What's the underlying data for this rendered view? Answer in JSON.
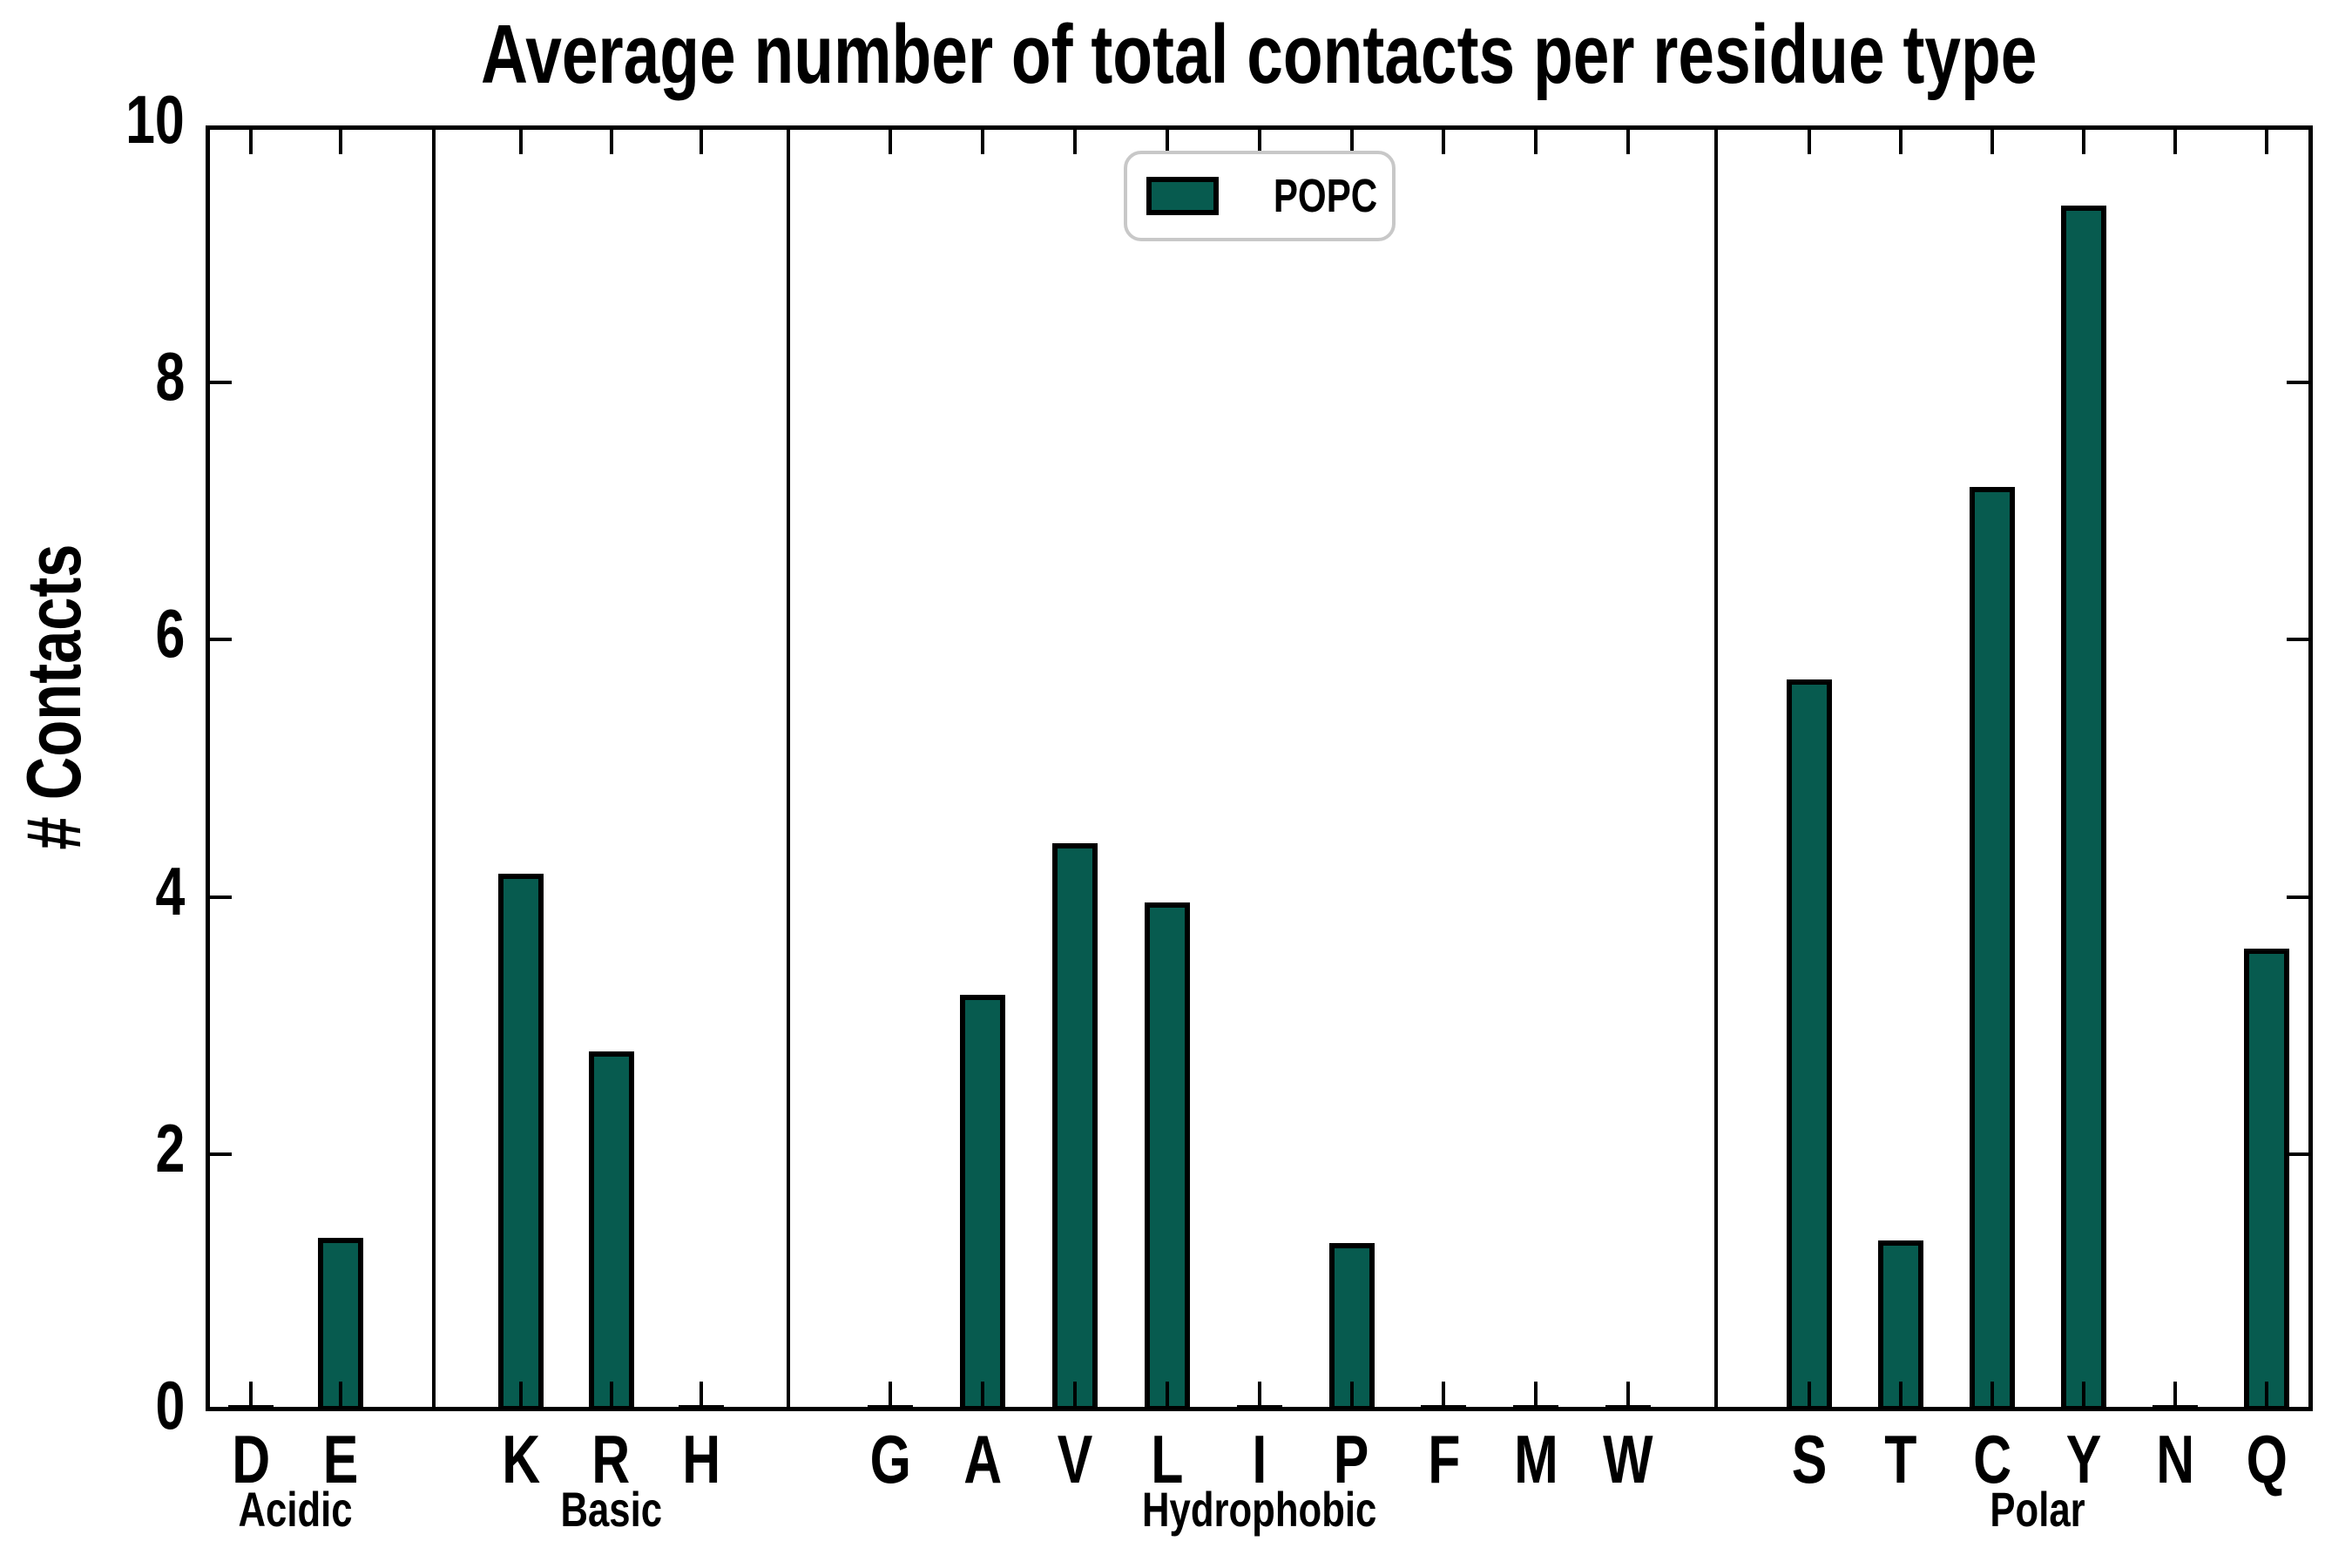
{
  "title": "Average number of total contacts per residue type",
  "ylabel": "# Contacts",
  "legend": {
    "label": "POPC"
  },
  "colors": {
    "bar_fill": "#075B4F",
    "bar_edge": "#000000",
    "axis": "#000000",
    "legend_border": "#C8C8C8",
    "background": "#FFFFFF"
  },
  "axes": {
    "ymin": 0,
    "ymax": 10,
    "yticks": [
      0,
      2,
      4,
      6,
      8,
      10
    ]
  },
  "chart_data": {
    "type": "bar",
    "title": "Average number of total contacts per residue type",
    "xlabel": "",
    "ylabel": "# Contacts",
    "ylim": [
      0,
      10
    ],
    "grid": false,
    "legend_position": "upper center",
    "series_name": "POPC",
    "groups": [
      {
        "name": "Acidic",
        "categories": [
          "D",
          "E"
        ],
        "values": [
          0.02,
          1.35
        ]
      },
      {
        "name": "Basic",
        "categories": [
          "K",
          "R",
          "H"
        ],
        "values": [
          4.18,
          2.8,
          0.02
        ]
      },
      {
        "name": "Hydrophobic",
        "categories": [
          "G",
          "A",
          "V",
          "L",
          "I",
          "P",
          "F",
          "M",
          "W"
        ],
        "values": [
          0.02,
          3.24,
          4.42,
          3.96,
          0.02,
          1.31,
          0.02,
          0.02,
          0.02
        ]
      },
      {
        "name": "Polar",
        "categories": [
          "S",
          "T",
          "C",
          "Y",
          "N",
          "Q"
        ],
        "values": [
          5.69,
          1.33,
          7.19,
          9.38,
          0.02,
          3.6
        ]
      }
    ]
  }
}
